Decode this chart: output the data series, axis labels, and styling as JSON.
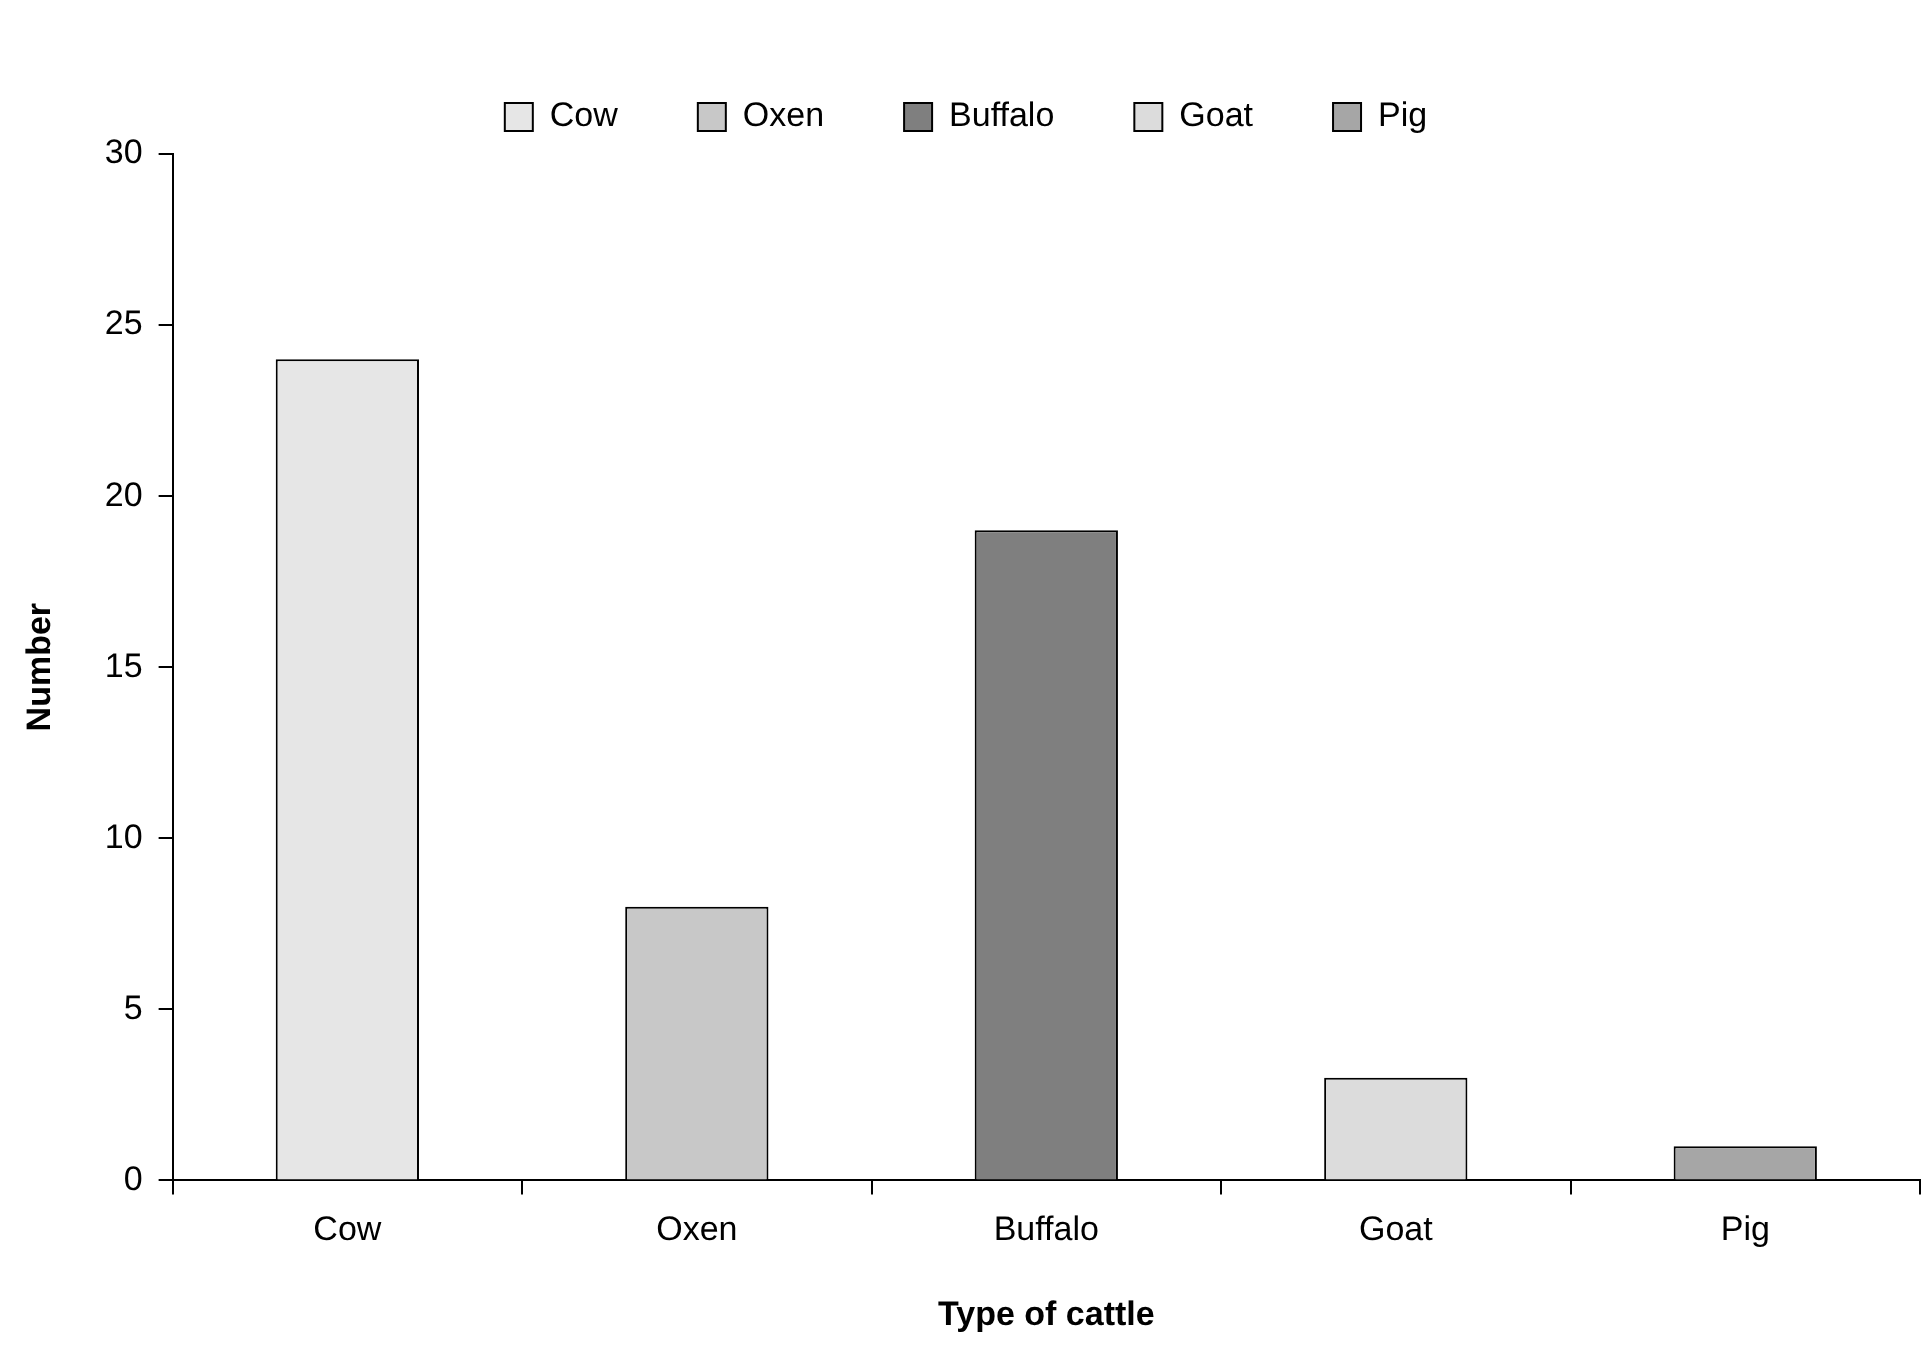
{
  "chart_data": {
    "type": "bar",
    "xlabel": "Type of cattle",
    "ylabel": "Number",
    "categories": [
      "Cow",
      "Oxen",
      "Buffalo",
      "Goat",
      "Pig"
    ],
    "series": [
      {
        "name": "Cow",
        "color": "#e6e6e6",
        "values": [
          24,
          null,
          null,
          null,
          null
        ]
      },
      {
        "name": "Oxen",
        "color": "#c8c8c8",
        "values": [
          null,
          8,
          null,
          null,
          null
        ]
      },
      {
        "name": "Buffalo",
        "color": "#7f7f7f",
        "values": [
          null,
          null,
          19,
          null,
          null
        ]
      },
      {
        "name": "Goat",
        "color": "#dcdcdc",
        "values": [
          null,
          null,
          null,
          3,
          null
        ]
      },
      {
        "name": "Pig",
        "color": "#a6a6a6",
        "values": [
          null,
          null,
          null,
          null,
          1
        ]
      }
    ],
    "ylim": [
      0,
      30
    ],
    "yticks": [
      0,
      5,
      10,
      15,
      20,
      25,
      30
    ],
    "grid": false,
    "legend": "top"
  }
}
